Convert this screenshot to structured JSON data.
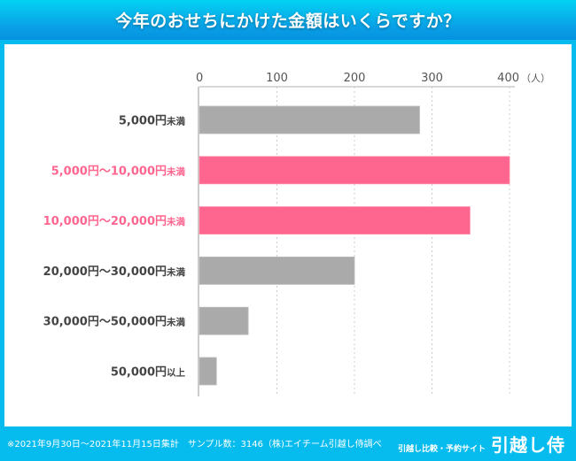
{
  "header": {
    "title": "今年のおせちにかけた金額はいくらですか？"
  },
  "chart_data": {
    "type": "bar",
    "orientation": "horizontal",
    "title": "今年のおせちにかけた金額はいくらですか？",
    "xlabel": "",
    "ylabel": "",
    "unit_label": "（人）",
    "xlim": [
      0,
      400
    ],
    "xticks": [
      0,
      100,
      200,
      300,
      400
    ],
    "grid": true,
    "categories": [
      {
        "main": "5,000円",
        "suffix": "未満"
      },
      {
        "main": "5,000円〜10,000円",
        "suffix": "未満"
      },
      {
        "main": "10,000円〜20,000円",
        "suffix": "未満"
      },
      {
        "main": "20,000円〜30,000円",
        "suffix": "未満"
      },
      {
        "main": "30,000円〜50,000円",
        "suffix": "未満"
      },
      {
        "main": "50,000円",
        "suffix": "以上"
      }
    ],
    "values": [
      284,
      400,
      349,
      200,
      63,
      22
    ],
    "highlighted": [
      false,
      true,
      true,
      false,
      false,
      false
    ],
    "colors": {
      "default_bar": "#aaaaaa",
      "highlight_bar": "#ff668f",
      "default_label": "#444444",
      "highlight_label": "#ff668f",
      "grid": "#cccccc",
      "axis": "#cccccc"
    }
  },
  "footer": {
    "note": "※2021年9月30日〜2021年11月15日集計　サンプル数：3146（株)エイチーム引越し侍調べ",
    "tagline": "引越し比較・予約サイト",
    "logo": "引越し侍"
  }
}
